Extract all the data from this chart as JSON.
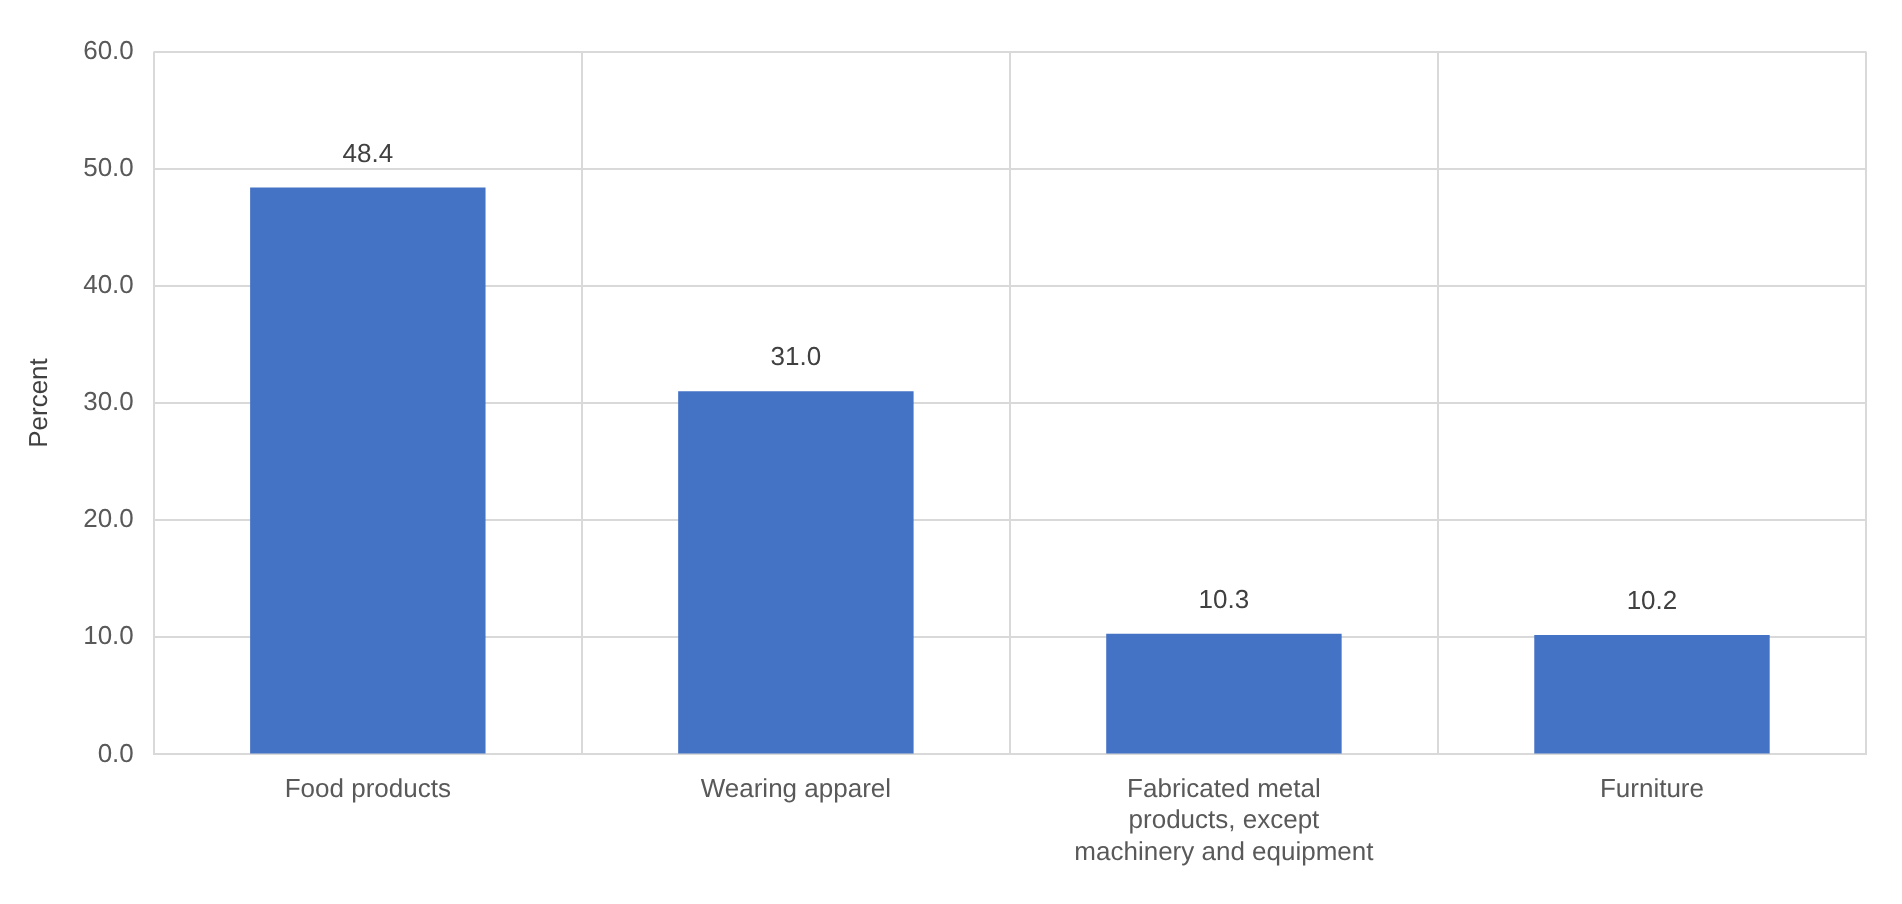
{
  "chart_data": {
    "type": "bar",
    "ylabel": "Percent",
    "categories": [
      "Food products",
      "Wearing apparel",
      "Fabricated metal products, except machinery and equipment",
      "Furniture"
    ],
    "values": [
      48.4,
      31.0,
      10.3,
      10.2
    ],
    "color": "#4472c4",
    "value_labels": [
      "48.4",
      "31.0",
      "10.3",
      "10.2"
    ],
    "ylim": [
      0,
      60
    ],
    "yticks": [
      {
        "value": 0,
        "label": "0.0"
      },
      {
        "value": 10,
        "label": "10.0"
      },
      {
        "value": 20,
        "label": "20.0"
      },
      {
        "value": 30,
        "label": "30.0"
      },
      {
        "value": 40,
        "label": "40.0"
      },
      {
        "value": 50,
        "label": "50.0"
      },
      {
        "value": 60,
        "label": "60.0"
      }
    ],
    "grid": true
  }
}
